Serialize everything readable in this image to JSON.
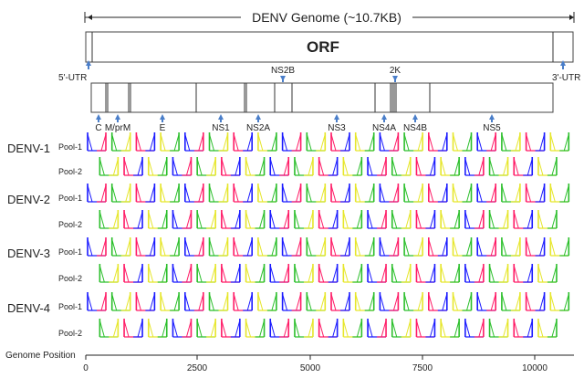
{
  "header": {
    "title": "DENV Genome (~10.7KB)",
    "orf_label": "ORF",
    "utr5_label": "5'-UTR",
    "utr3_label": "3'-UTR"
  },
  "genes": [
    {
      "name": "C",
      "label_row": "bottom"
    },
    {
      "name": "M/prM",
      "label_row": "bottom"
    },
    {
      "name": "E",
      "label_row": "bottom"
    },
    {
      "name": "NS1",
      "label_row": "bottom"
    },
    {
      "name": "NS2A",
      "label_row": "bottom"
    },
    {
      "name": "NS2B",
      "label_row": "top"
    },
    {
      "name": "NS3",
      "label_row": "bottom"
    },
    {
      "name": "NS4A",
      "label_row": "bottom"
    },
    {
      "name": "2K",
      "label_row": "top"
    },
    {
      "name": "NS4B",
      "label_row": "bottom"
    },
    {
      "name": "NS5",
      "label_row": "bottom"
    }
  ],
  "serotypes": [
    {
      "name": "DENV-1",
      "pools": [
        {
          "label": "Pool-1",
          "start": 0,
          "count": 20
        },
        {
          "label": "Pool-2",
          "start": 1,
          "count": 19
        }
      ]
    },
    {
      "name": "DENV-2",
      "pools": [
        {
          "label": "Pool-1",
          "start": 0,
          "count": 20
        },
        {
          "label": "Pool-2",
          "start": 1,
          "count": 19
        }
      ]
    },
    {
      "name": "DENV-3",
      "pools": [
        {
          "label": "Pool-1",
          "start": 0,
          "count": 20
        },
        {
          "label": "Pool-2",
          "start": 1,
          "count": 19
        }
      ]
    },
    {
      "name": "DENV-4",
      "pools": [
        {
          "label": "Pool-1",
          "start": 0,
          "count": 20
        },
        {
          "label": "Pool-2",
          "start": 1,
          "count": 19
        }
      ]
    }
  ],
  "amplicon_colors": [
    "#1a1aff",
    "#2bbf2b",
    "#ff1a66",
    "#e6e62a"
  ],
  "axis": {
    "label": "Genome Position",
    "ticks": [
      "0",
      "2500",
      "5000",
      "7500",
      "10000"
    ]
  },
  "colors": {
    "marker": "#4a7ec9",
    "line": "#222222"
  }
}
